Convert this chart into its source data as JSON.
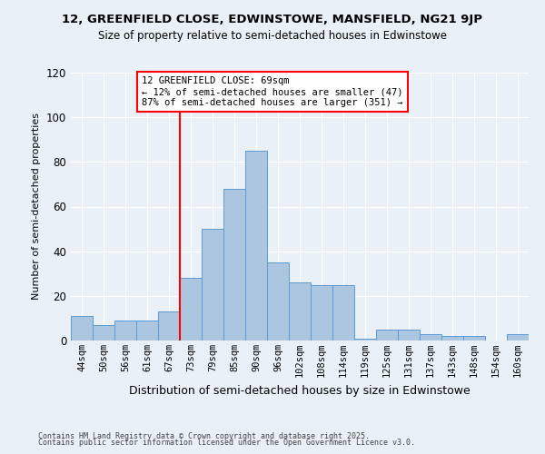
{
  "title": "12, GREENFIELD CLOSE, EDWINSTOWE, MANSFIELD, NG21 9JP",
  "subtitle": "Size of property relative to semi-detached houses in Edwinstowe",
  "xlabel": "Distribution of semi-detached houses by size in Edwinstowe",
  "ylabel": "Number of semi-detached properties",
  "categories": [
    "44sqm",
    "50sqm",
    "56sqm",
    "61sqm",
    "67sqm",
    "73sqm",
    "79sqm",
    "85sqm",
    "90sqm",
    "96sqm",
    "102sqm",
    "108sqm",
    "114sqm",
    "119sqm",
    "125sqm",
    "131sqm",
    "137sqm",
    "143sqm",
    "148sqm",
    "154sqm",
    "160sqm"
  ],
  "values": [
    11,
    7,
    9,
    9,
    13,
    28,
    50,
    68,
    85,
    35,
    26,
    25,
    25,
    1,
    5,
    5,
    3,
    2,
    2,
    0,
    3
  ],
  "bar_color": "#adc6e0",
  "bar_edge_color": "#5b9bd5",
  "red_line_index": 4,
  "ylim": [
    0,
    120
  ],
  "yticks": [
    0,
    20,
    40,
    60,
    80,
    100,
    120
  ],
  "annotation_title": "12 GREENFIELD CLOSE: 69sqm",
  "annotation_line1": "← 12% of semi-detached houses are smaller (47)",
  "annotation_line2": "87% of semi-detached houses are larger (351) →",
  "footer1": "Contains HM Land Registry data © Crown copyright and database right 2025.",
  "footer2": "Contains public sector information licensed under the Open Government Licence v3.0.",
  "bg_color": "#eaf0f8",
  "plot_bg_color": "#eaf0f8"
}
